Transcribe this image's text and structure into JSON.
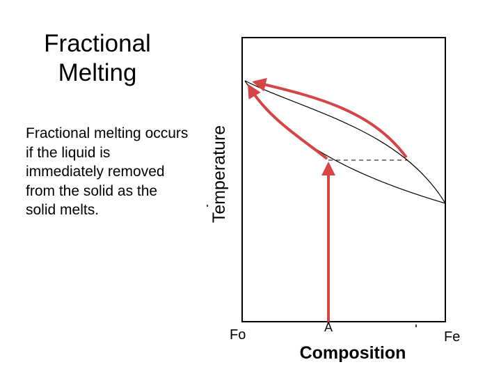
{
  "slide": {
    "title_line1": "Fractional",
    "title_line2": "Melting",
    "body": "Fractional melting occurs if the liquid is immediately removed from the solid as the solid melts."
  },
  "diagram": {
    "y_axis_label": "Temperature",
    "x_axis_label": "Composition",
    "left_end_label": "Fo",
    "right_end_label": "Fe",
    "start_composition_label": "A",
    "colors": {
      "arrow": "#d64545",
      "curve": "#000000",
      "frame": "#000000"
    }
  }
}
